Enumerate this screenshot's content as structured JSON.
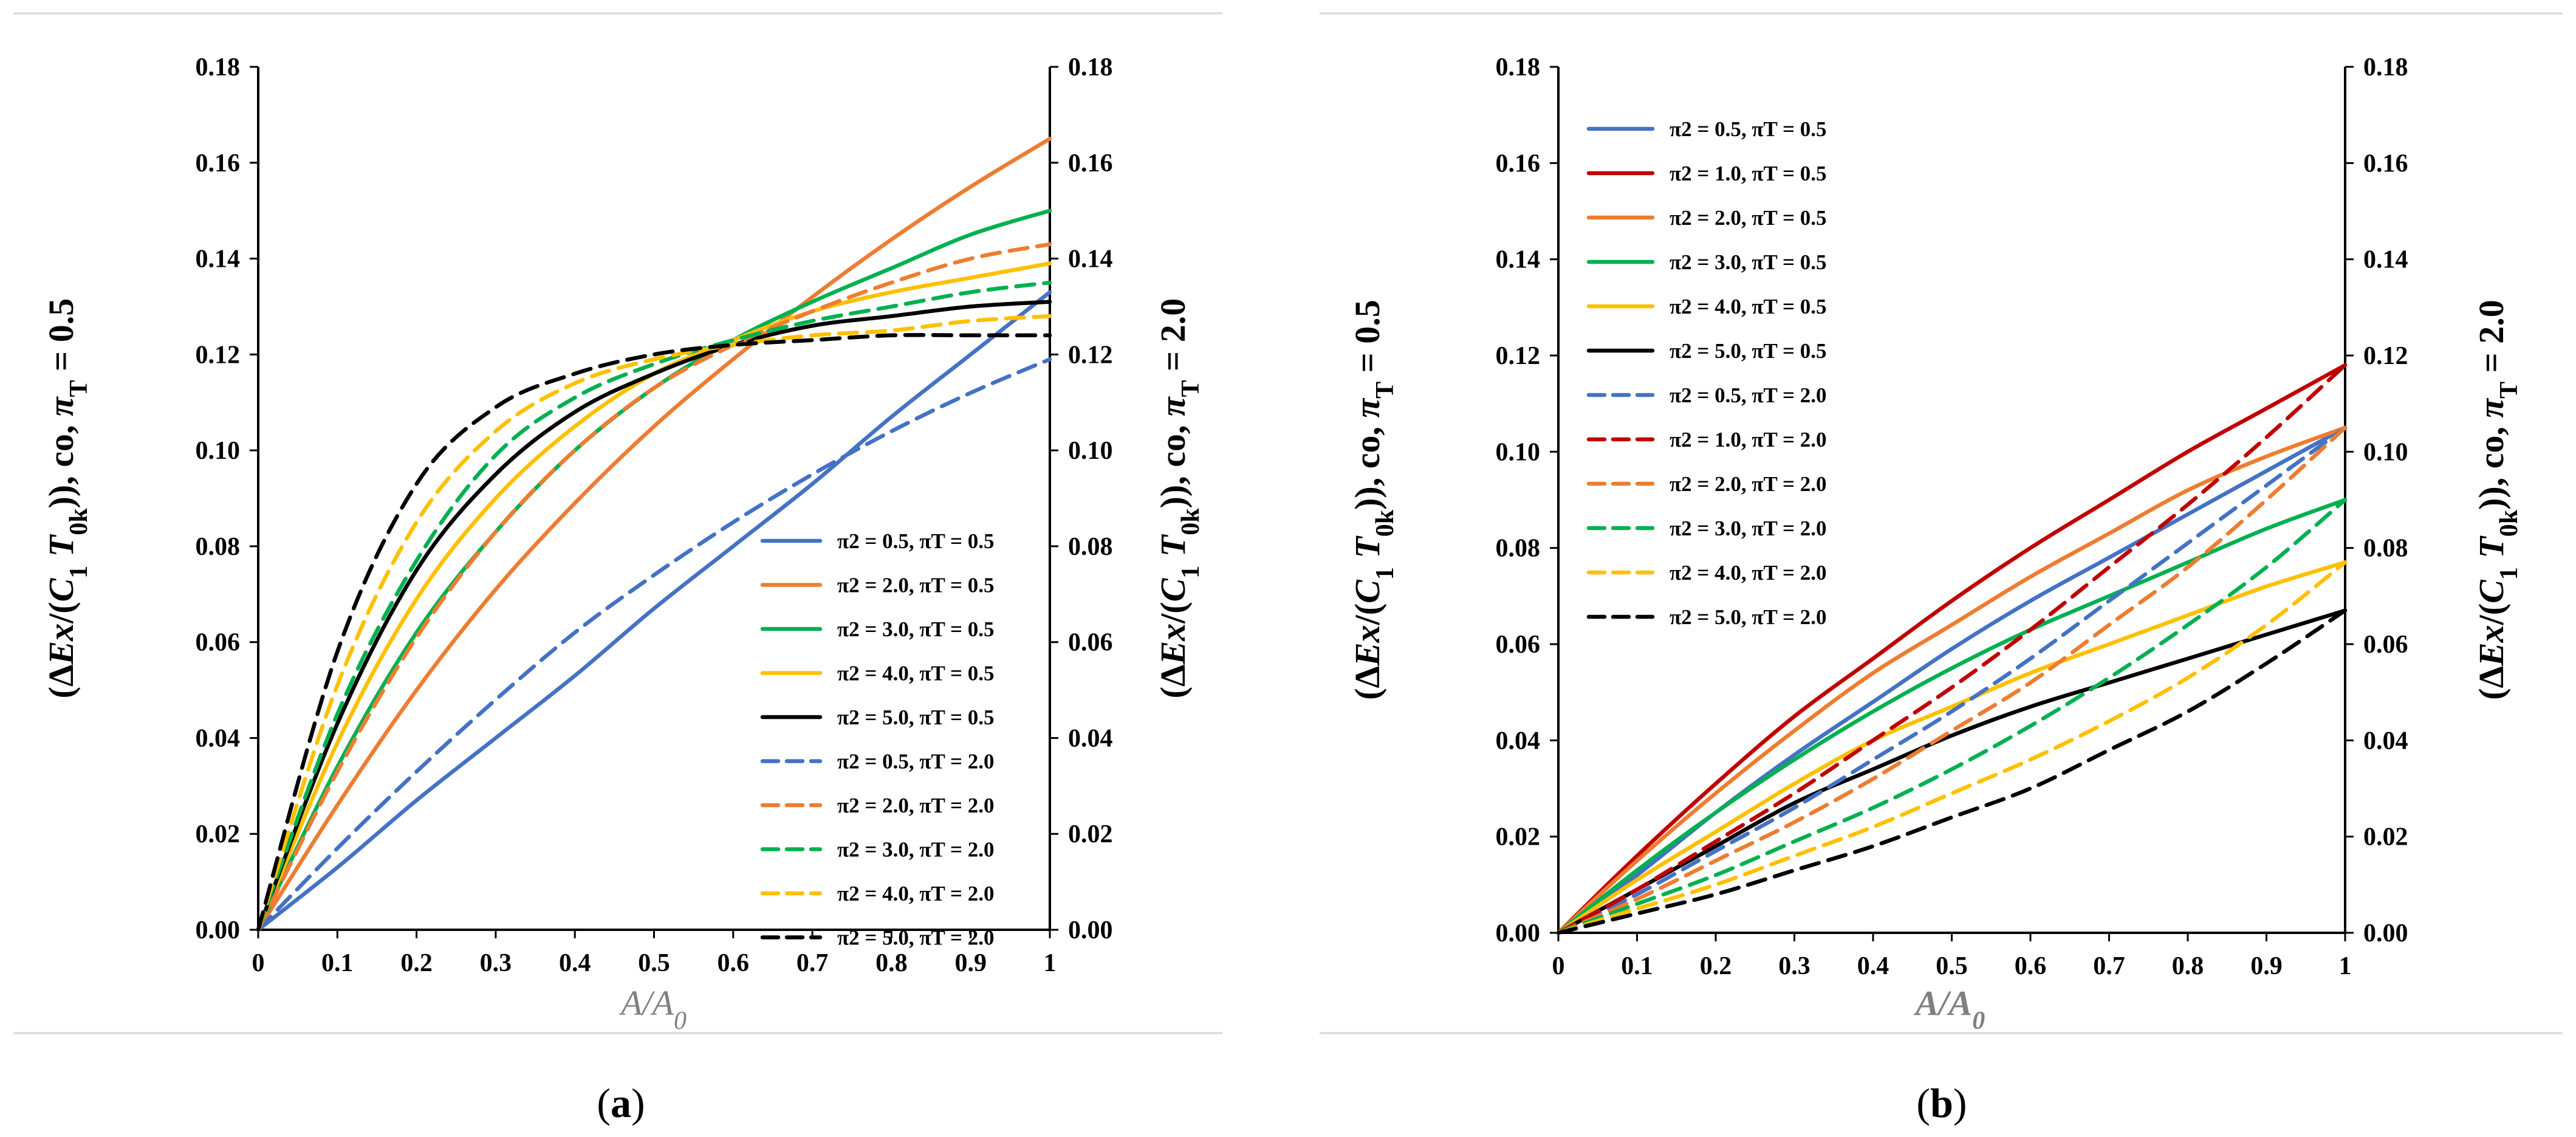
{
  "chart_data": [
    {
      "type": "line",
      "panel": "a",
      "caption_letter": "a",
      "xlabel": {
        "base": "A/A",
        "sub": "0"
      },
      "ylabel_left": {
        "prefix": "(Δ",
        "e1": "Ex",
        "m1": "/(",
        "e2": "C",
        "s1": "1",
        "m2": " ",
        "e3": "T",
        "s2": "0k",
        "suffix": ")), co, ",
        "pi": "π",
        "ps": "T",
        "eq": " = 0.5"
      },
      "ylabel_right": {
        "prefix": "(Δ",
        "e1": "Ex",
        "m1": "/(",
        "e2": "C",
        "s1": "1",
        "m2": " ",
        "e3": "T",
        "s2": "0k",
        "suffix": ")), co, ",
        "pi": "π",
        "ps": "T",
        "eq": " = 2.0"
      },
      "xlim": [
        0,
        1
      ],
      "ylim": [
        0,
        0.18
      ],
      "xticks": [
        "0",
        "0.1",
        "0.2",
        "0.3",
        "0.4",
        "0.5",
        "0.6",
        "0.7",
        "0.8",
        "0.9",
        "1"
      ],
      "yticks_left": [
        "0.00",
        "0.02",
        "0.04",
        "0.06",
        "0.08",
        "0.10",
        "0.12",
        "0.14",
        "0.16",
        "0.18"
      ],
      "yticks_right": [
        "0.00",
        "0.02",
        "0.04",
        "0.06",
        "0.08",
        "0.10",
        "0.12",
        "0.14",
        "0.16",
        "0.18"
      ],
      "legend_position": "bottom-right",
      "x": [
        0,
        0.1,
        0.2,
        0.3,
        0.4,
        0.5,
        0.6,
        0.7,
        0.8,
        0.9,
        1.0
      ],
      "series": [
        {
          "name": "π2 = 0.5, πT = 0.5",
          "color": "#4472c4",
          "dash": "solid",
          "values": [
            0,
            0.013,
            0.027,
            0.04,
            0.053,
            0.067,
            0.08,
            0.093,
            0.107,
            0.12,
            0.133
          ]
        },
        {
          "name": "π2 = 2.0, πT = 0.5",
          "color": "#ed7d31",
          "dash": "solid",
          "values": [
            0,
            0.026,
            0.05,
            0.071,
            0.089,
            0.105,
            0.119,
            0.132,
            0.144,
            0.155,
            0.165
          ]
        },
        {
          "name": "π2 = 3.0, πT = 0.5",
          "color": "#00b050",
          "dash": "solid",
          "values": [
            0,
            0.034,
            0.062,
            0.083,
            0.1,
            0.113,
            0.123,
            0.131,
            0.138,
            0.145,
            0.15
          ]
        },
        {
          "name": "π2 = 4.0, πT = 0.5",
          "color": "#ffc000",
          "dash": "solid",
          "values": [
            0,
            0.039,
            0.069,
            0.09,
            0.105,
            0.116,
            0.123,
            0.129,
            0.133,
            0.136,
            0.139
          ]
        },
        {
          "name": "π2 = 5.0, πT = 0.5",
          "color": "#000000",
          "dash": "solid",
          "values": [
            0,
            0.043,
            0.075,
            0.095,
            0.108,
            0.116,
            0.122,
            0.126,
            0.128,
            0.13,
            0.131
          ]
        },
        {
          "name": "π2 = 0.5, πT = 2.0",
          "color": "#4472c4",
          "dash": "dashed",
          "values": [
            0,
            0.017,
            0.033,
            0.048,
            0.062,
            0.074,
            0.085,
            0.095,
            0.104,
            0.112,
            0.119
          ]
        },
        {
          "name": "π2 = 2.0, πT = 2.0",
          "color": "#ed7d31",
          "dash": "dashed",
          "values": [
            0,
            0.033,
            0.061,
            0.083,
            0.1,
            0.113,
            0.122,
            0.129,
            0.135,
            0.14,
            0.143
          ]
        },
        {
          "name": "π2 = 3.0, πT = 2.0",
          "color": "#00b050",
          "dash": "dashed",
          "values": [
            0,
            0.045,
            0.077,
            0.099,
            0.111,
            0.118,
            0.123,
            0.127,
            0.13,
            0.133,
            0.135
          ]
        },
        {
          "name": "π2 = 4.0, πT = 2.0",
          "color": "#ffc000",
          "dash": "dashed",
          "values": [
            0,
            0.051,
            0.085,
            0.104,
            0.114,
            0.119,
            0.122,
            0.124,
            0.125,
            0.127,
            0.128
          ]
        },
        {
          "name": "π2 = 5.0, πT = 2.0",
          "color": "#000000",
          "dash": "dashed",
          "values": [
            0,
            0.058,
            0.093,
            0.109,
            0.116,
            0.12,
            0.122,
            0.123,
            0.124,
            0.124,
            0.124
          ]
        }
      ]
    },
    {
      "type": "line",
      "panel": "b",
      "caption_letter": "b",
      "xlabel": {
        "base": "A/A",
        "sub": "0"
      },
      "ylabel_left": {
        "prefix": "(Δ",
        "e1": "Ex",
        "m1": "/(",
        "e2": "C",
        "s1": "1",
        "m2": " ",
        "e3": "T",
        "s2": "0k",
        "suffix": ")), co, ",
        "pi": "π",
        "ps": "T",
        "eq": " = 0.5"
      },
      "ylabel_right": {
        "prefix": "(Δ",
        "e1": "Ex",
        "m1": "/(",
        "e2": "C",
        "s1": "1",
        "m2": " ",
        "e3": "T",
        "s2": "0k",
        "suffix": ")), co, ",
        "pi": "π",
        "ps": "T",
        "eq": " = 2.0"
      },
      "xlim": [
        0,
        1
      ],
      "ylim": [
        0,
        0.18
      ],
      "xticks": [
        "0",
        "0.1",
        "0.2",
        "0.3",
        "0.4",
        "0.5",
        "0.6",
        "0.7",
        "0.8",
        "0.9",
        "1"
      ],
      "yticks_left": [
        "0.00",
        "0.02",
        "0.04",
        "0.06",
        "0.08",
        "0.10",
        "0.12",
        "0.14",
        "0.16",
        "0.18"
      ],
      "yticks_right": [
        "0.00",
        "0.02",
        "0.04",
        "0.06",
        "0.08",
        "0.10",
        "0.12",
        "0.14",
        "0.16",
        "0.18"
      ],
      "legend_position": "top-left",
      "x": [
        0,
        0.1,
        0.2,
        0.3,
        0.4,
        0.5,
        0.6,
        0.7,
        0.8,
        0.9,
        1.0
      ],
      "series": [
        {
          "name": "π2 = 0.5, πT = 0.5",
          "color": "#4472c4",
          "dash": "solid",
          "values": [
            0,
            0.012,
            0.025,
            0.037,
            0.048,
            0.059,
            0.069,
            0.078,
            0.087,
            0.096,
            0.105
          ]
        },
        {
          "name": "π2 = 1.0, πT = 0.5",
          "color": "#c00000",
          "dash": "solid",
          "values": [
            0,
            0.016,
            0.031,
            0.045,
            0.057,
            0.069,
            0.08,
            0.09,
            0.1,
            0.109,
            0.118
          ]
        },
        {
          "name": "π2 = 2.0, πT = 0.5",
          "color": "#ed7d31",
          "dash": "solid",
          "values": [
            0,
            0.015,
            0.029,
            0.042,
            0.054,
            0.064,
            0.074,
            0.083,
            0.092,
            0.099,
            0.105
          ]
        },
        {
          "name": "π2 = 3.0, πT = 0.5",
          "color": "#00b050",
          "dash": "solid",
          "values": [
            0,
            0.013,
            0.025,
            0.036,
            0.046,
            0.055,
            0.063,
            0.07,
            0.077,
            0.084,
            0.09
          ]
        },
        {
          "name": "π2 = 4.0, πT = 0.5",
          "color": "#ffc000",
          "dash": "solid",
          "values": [
            0,
            0.011,
            0.021,
            0.031,
            0.04,
            0.047,
            0.054,
            0.06,
            0.066,
            0.072,
            0.077
          ]
        },
        {
          "name": "π2 = 5.0, πT = 0.5",
          "color": "#000000",
          "dash": "solid",
          "values": [
            0,
            0.009,
            0.018,
            0.027,
            0.034,
            0.041,
            0.047,
            0.052,
            0.057,
            0.062,
            0.067
          ]
        },
        {
          "name": "π2 = 0.5, πT = 2.0",
          "color": "#4472c4",
          "dash": "dashed",
          "values": [
            0,
            0.008,
            0.017,
            0.026,
            0.036,
            0.046,
            0.057,
            0.069,
            0.081,
            0.093,
            0.105
          ]
        },
        {
          "name": "π2 = 1.0, πT = 2.0",
          "color": "#c00000",
          "dash": "dashed",
          "values": [
            0,
            0.009,
            0.019,
            0.029,
            0.04,
            0.051,
            0.063,
            0.076,
            0.089,
            0.103,
            0.118
          ]
        },
        {
          "name": "π2 = 2.0, πT = 2.0",
          "color": "#ed7d31",
          "dash": "dashed",
          "values": [
            0,
            0.007,
            0.015,
            0.023,
            0.032,
            0.042,
            0.052,
            0.064,
            0.076,
            0.09,
            0.105
          ]
        },
        {
          "name": "π2 = 3.0, πT = 2.0",
          "color": "#00b050",
          "dash": "dashed",
          "values": [
            0,
            0.006,
            0.012,
            0.019,
            0.026,
            0.034,
            0.043,
            0.053,
            0.064,
            0.076,
            0.09
          ]
        },
        {
          "name": "π2 = 4.0, πT = 2.0",
          "color": "#ffc000",
          "dash": "dashed",
          "values": [
            0,
            0.005,
            0.01,
            0.016,
            0.022,
            0.029,
            0.036,
            0.044,
            0.053,
            0.064,
            0.077
          ]
        },
        {
          "name": "π2 = 5.0, πT = 2.0",
          "color": "#000000",
          "dash": "dashed",
          "values": [
            0,
            0.004,
            0.008,
            0.013,
            0.018,
            0.024,
            0.03,
            0.038,
            0.046,
            0.056,
            0.067
          ]
        }
      ]
    }
  ]
}
